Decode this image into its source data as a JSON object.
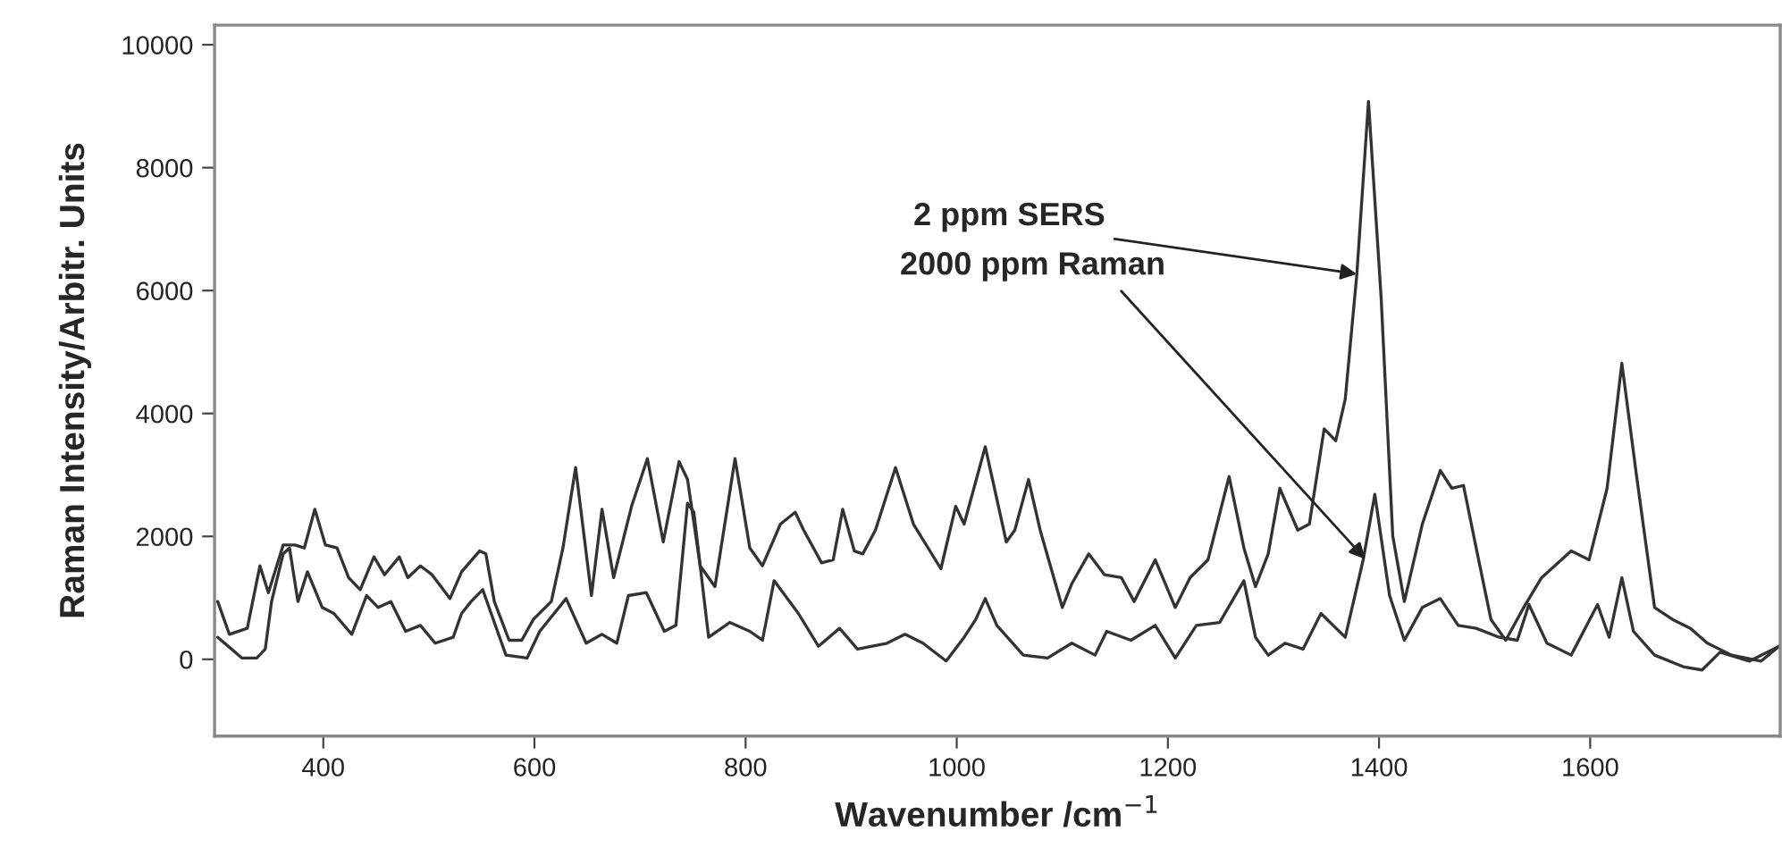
{
  "chart_data": {
    "type": "line",
    "xlabel": "Wavenumber /cm$^{−1}$",
    "ylabel": "Raman Intensity/Arbitr. Units",
    "xlim": [
      297,
      1780
    ],
    "ylim": [
      -1250,
      10320
    ],
    "xticks": [
      400,
      600,
      800,
      1000,
      1200,
      1400,
      1600
    ],
    "yticks": [
      0,
      2000,
      4000,
      6000,
      8000,
      10000
    ],
    "grid": false,
    "series": [
      {
        "color": "#333333",
        "x": [
          300,
          311,
          328,
          340,
          348,
          362,
          373,
          382,
          392,
          402,
          413,
          424,
          435,
          448,
          458,
          472,
          480,
          492,
          503,
          520,
          531,
          548,
          554,
          562,
          576,
          588,
          599,
          616,
          627,
          639,
          654,
          664,
          675,
          692,
          707,
          722,
          737,
          745,
          757,
          771,
          790,
          804,
          816,
          833,
          847,
          855,
          872,
          883,
          892,
          903,
          911,
          923,
          942,
          959,
          985,
          999,
          1007,
          1027,
          1047,
          1055,
          1068,
          1079,
          1100,
          1109,
          1125,
          1140,
          1156,
          1168,
          1188,
          1207,
          1221,
          1238,
          1258,
          1272,
          1283,
          1295,
          1306,
          1323,
          1334,
          1348,
          1359,
          1368,
          1379,
          1390,
          1402,
          1413,
          1424,
          1441,
          1458,
          1469,
          1480,
          1492,
          1506,
          1520,
          1537,
          1554,
          1582,
          1599,
          1616,
          1630,
          1644,
          1661,
          1678,
          1695,
          1711,
          1734,
          1762,
          1779
        ],
        "values": [
          940,
          407,
          504,
          1521,
          1085,
          1860,
          1860,
          1812,
          2442,
          1860,
          1812,
          1328,
          1134,
          1667,
          1376,
          1667,
          1328,
          1521,
          1376,
          988,
          1424,
          1763,
          1715,
          940,
          310,
          310,
          649,
          940,
          1812,
          3120,
          1037,
          2442,
          1328,
          2490,
          3266,
          1909,
          3217,
          2926,
          1521,
          1182,
          3266,
          1812,
          1521,
          2200,
          2393,
          2102,
          1570,
          1619,
          2442,
          1763,
          1715,
          2102,
          3120,
          2200,
          1473,
          2490,
          2200,
          3459,
          1909,
          2102,
          2926,
          2102,
          843,
          1230,
          1715,
          1376,
          1328,
          940,
          1619,
          843,
          1328,
          1619,
          2974,
          1812,
          1182,
          1715,
          2782,
          2102,
          2200,
          3750,
          3556,
          4235,
          6270,
          9079,
          5881,
          2006,
          940,
          2200,
          3072,
          2782,
          2829,
          1812,
          649,
          310,
          843,
          1328,
          1763,
          1619,
          2782,
          4817,
          2974,
          843,
          649,
          504,
          262,
          68,
          -29,
          213
        ]
      },
      {
        "color": "#333333",
        "x": [
          300,
          323,
          337,
          345,
          351,
          362,
          368,
          376,
          385,
          399,
          410,
          427,
          441,
          452,
          464,
          478,
          492,
          506,
          523,
          531,
          540,
          551,
          559,
          573,
          593,
          605,
          630,
          649,
          664,
          678,
          689,
          706,
          723,
          734,
          745,
          751,
          765,
          785,
          804,
          816,
          827,
          850,
          869,
          889,
          906,
          934,
          951,
          968,
          990,
          1007,
          1018,
          1027,
          1038,
          1063,
          1086,
          1109,
          1131,
          1142,
          1165,
          1188,
          1207,
          1227,
          1249,
          1272,
          1283,
          1295,
          1311,
          1328,
          1345,
          1368,
          1385,
          1396,
          1410,
          1424,
          1441,
          1458,
          1475,
          1492,
          1514,
          1531,
          1542,
          1559,
          1582,
          1607,
          1618,
          1630,
          1641,
          1661,
          1689,
          1706,
          1723,
          1751,
          1779
        ],
        "values": [
          358,
          20,
          20,
          165,
          940,
          1715,
          1812,
          940,
          1424,
          843,
          746,
          407,
          1037,
          843,
          940,
          455,
          552,
          262,
          358,
          746,
          940,
          1134,
          746,
          68,
          20,
          455,
          988,
          262,
          407,
          262,
          1037,
          1085,
          455,
          552,
          2539,
          2393,
          358,
          600,
          455,
          310,
          1279,
          746,
          213,
          504,
          165,
          262,
          407,
          262,
          -29,
          358,
          649,
          988,
          552,
          68,
          20,
          262,
          68,
          455,
          310,
          552,
          20,
          552,
          600,
          1279,
          358,
          68,
          262,
          165,
          746,
          358,
          1619,
          2684,
          1037,
          310,
          843,
          988,
          552,
          504,
          358,
          310,
          892,
          262,
          68,
          892,
          358,
          1328,
          455,
          68,
          -126,
          -174,
          116,
          -29,
          213
        ]
      }
    ],
    "annotations": [
      {
        "text": "2 ppm SERS",
        "x": 1379,
        "y": 6270
      },
      {
        "text": "2000 ppm Raman",
        "x": 1387,
        "y": 1630
      }
    ]
  }
}
